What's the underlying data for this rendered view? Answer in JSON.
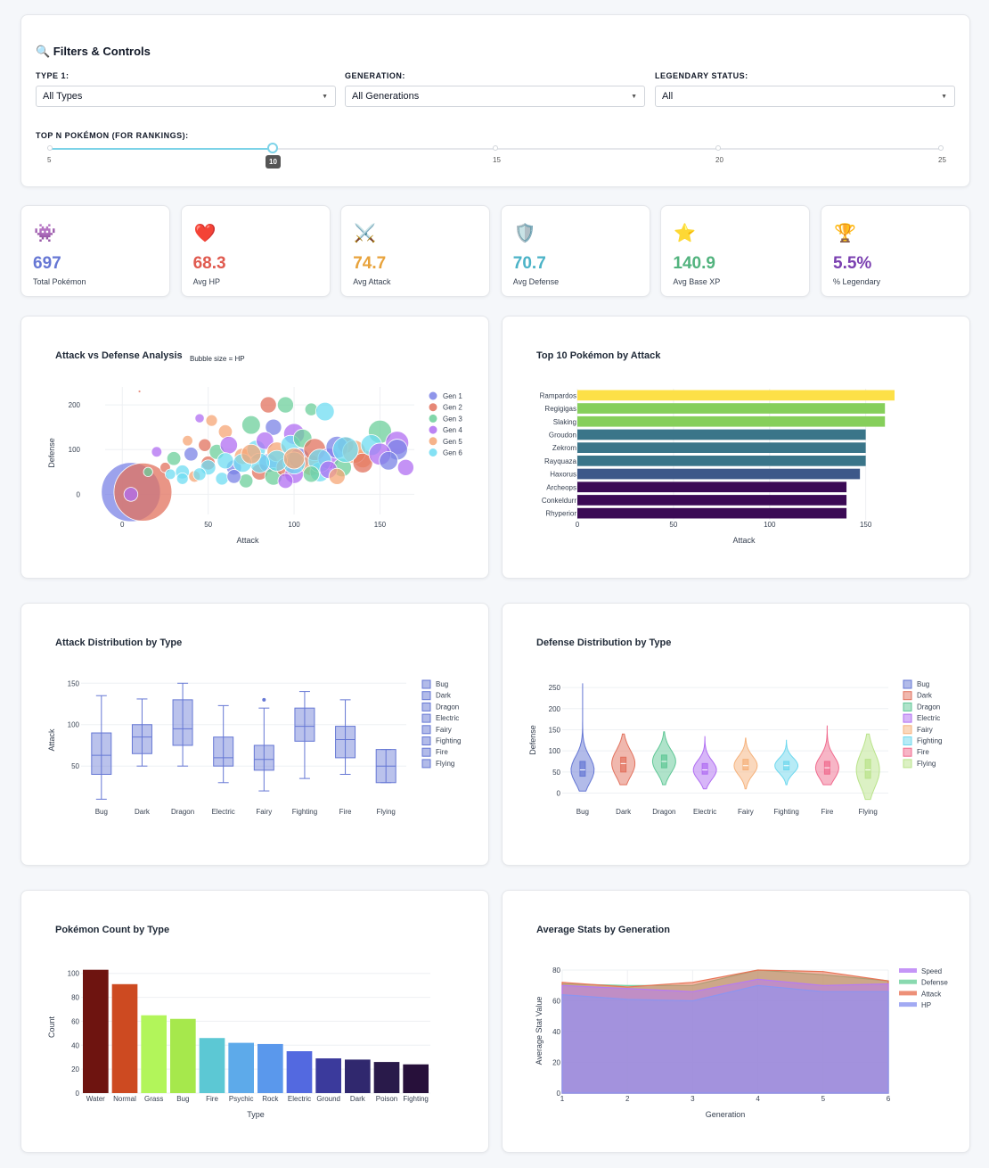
{
  "filters": {
    "title": "🔍 Filters & Controls",
    "type1": {
      "label": "TYPE 1:",
      "value": "All Types"
    },
    "generation": {
      "label": "GENERATION:",
      "value": "All Generations"
    },
    "legendary": {
      "label": "LEGENDARY STATUS:",
      "value": "All"
    },
    "slider": {
      "label": "TOP N POKÉMON (FOR RANKINGS):",
      "min": 5,
      "max": 25,
      "value": 10,
      "ticks": [
        "5",
        "10",
        "15",
        "20",
        "25"
      ],
      "current": "10"
    }
  },
  "kpis": [
    {
      "icon": "👾",
      "value": "697",
      "label": "Total Pokémon",
      "color": "#6677d4"
    },
    {
      "icon": "❤️",
      "value": "68.3",
      "label": "Avg HP",
      "color": "#e05a4f"
    },
    {
      "icon": "⚔️",
      "value": "74.7",
      "label": "Avg Attack",
      "color": "#e8a33c"
    },
    {
      "icon": "🛡️",
      "value": "70.7",
      "label": "Avg Defense",
      "color": "#4bb3c7"
    },
    {
      "icon": "⭐",
      "value": "140.9",
      "label": "Avg Base XP",
      "color": "#52b37e"
    },
    {
      "icon": "🏆",
      "value": "5.5%",
      "label": "% Legendary",
      "color": "#7a3fb0"
    }
  ],
  "chart_data": [
    {
      "id": "scatter",
      "type": "scatter",
      "title": "Attack vs Defense Analysis",
      "subtitle": "Bubble size = HP",
      "xlabel": "Attack",
      "ylabel": "Defense",
      "xlim": [
        -10,
        170
      ],
      "ylim": [
        -45,
        240
      ],
      "xticks": [
        0,
        50,
        100,
        150
      ],
      "yticks": [
        0,
        100,
        200
      ],
      "series": [
        {
          "name": "Gen 1",
          "color": "#7b83e6"
        },
        {
          "name": "Gen 2",
          "color": "#e2725e"
        },
        {
          "name": "Gen 3",
          "color": "#6ccf9b"
        },
        {
          "name": "Gen 4",
          "color": "#b06ef2"
        },
        {
          "name": "Gen 5",
          "color": "#f5a676"
        },
        {
          "name": "Gen 6",
          "color": "#6fdcf2"
        }
      ],
      "points": [
        [
          5,
          5,
          255,
          0
        ],
        [
          10,
          230,
          10,
          1
        ],
        [
          12,
          5,
          250,
          1
        ],
        [
          5,
          0,
          60,
          3
        ],
        [
          85,
          200,
          70,
          1
        ],
        [
          95,
          200,
          70,
          2
        ],
        [
          110,
          190,
          55,
          2
        ],
        [
          118,
          185,
          80,
          5
        ],
        [
          45,
          170,
          40,
          3
        ],
        [
          52,
          165,
          50,
          4
        ],
        [
          75,
          155,
          80,
          2
        ],
        [
          88,
          150,
          70,
          0
        ],
        [
          60,
          140,
          60,
          4
        ],
        [
          100,
          135,
          90,
          3
        ],
        [
          150,
          140,
          100,
          2
        ],
        [
          160,
          115,
          100,
          3
        ],
        [
          160,
          100,
          90,
          0
        ],
        [
          165,
          60,
          70,
          3
        ],
        [
          140,
          80,
          80,
          4
        ],
        [
          130,
          110,
          70,
          1
        ],
        [
          20,
          95,
          45,
          3
        ],
        [
          25,
          60,
          45,
          1
        ],
        [
          30,
          80,
          60,
          2
        ],
        [
          35,
          50,
          60,
          5
        ],
        [
          40,
          90,
          60,
          0
        ],
        [
          42,
          40,
          50,
          4
        ],
        [
          50,
          70,
          60,
          1
        ],
        [
          55,
          95,
          65,
          2
        ],
        [
          58,
          35,
          55,
          5
        ],
        [
          62,
          110,
          75,
          3
        ],
        [
          65,
          60,
          65,
          0
        ],
        [
          70,
          85,
          70,
          4
        ],
        [
          72,
          30,
          60,
          2
        ],
        [
          78,
          100,
          80,
          5
        ],
        [
          80,
          50,
          70,
          1
        ],
        [
          83,
          120,
          75,
          3
        ],
        [
          85,
          70,
          80,
          0
        ],
        [
          88,
          40,
          75,
          2
        ],
        [
          90,
          95,
          85,
          4
        ],
        [
          95,
          60,
          80,
          1
        ],
        [
          98,
          110,
          85,
          5
        ],
        [
          100,
          45,
          80,
          3
        ],
        [
          103,
          80,
          90,
          0
        ],
        [
          105,
          125,
          80,
          2
        ],
        [
          110,
          65,
          90,
          4
        ],
        [
          112,
          100,
          95,
          1
        ],
        [
          115,
          50,
          85,
          5
        ],
        [
          120,
          80,
          90,
          3
        ],
        [
          125,
          105,
          95,
          0
        ],
        [
          128,
          60,
          80,
          2
        ],
        [
          135,
          95,
          100,
          4
        ],
        [
          140,
          70,
          85,
          1
        ],
        [
          145,
          110,
          90,
          5
        ],
        [
          150,
          90,
          95,
          3
        ],
        [
          155,
          75,
          80,
          0
        ],
        [
          130,
          100,
          110,
          5
        ],
        [
          115,
          75,
          100,
          5
        ],
        [
          100,
          70,
          95,
          5
        ],
        [
          90,
          75,
          90,
          5
        ],
        [
          80,
          70,
          85,
          5
        ],
        [
          70,
          70,
          80,
          5
        ],
        [
          60,
          75,
          70,
          5
        ],
        [
          50,
          60,
          65,
          5
        ],
        [
          45,
          45,
          55,
          5
        ],
        [
          35,
          35,
          50,
          5
        ],
        [
          28,
          45,
          45,
          5
        ],
        [
          100,
          80,
          90,
          4
        ],
        [
          75,
          90,
          85,
          4
        ],
        [
          65,
          40,
          60,
          0
        ],
        [
          110,
          45,
          70,
          2
        ],
        [
          120,
          55,
          75,
          3
        ],
        [
          48,
          110,
          55,
          1
        ],
        [
          38,
          120,
          45,
          4
        ],
        [
          95,
          30,
          65,
          3
        ],
        [
          125,
          40,
          70,
          4
        ],
        [
          15,
          50,
          40,
          2
        ]
      ]
    },
    {
      "id": "topattack",
      "type": "bar",
      "orientation": "horizontal",
      "title": "Top 10 Pokémon by Attack",
      "xlabel": "Attack",
      "xlim": [
        0,
        165
      ],
      "xticks": [
        0,
        50,
        100,
        150
      ],
      "categories": [
        "Rampardos",
        "Regigigas",
        "Slaking",
        "Groudon",
        "Zekrom",
        "Rayquaza",
        "Haxorus",
        "Archeops",
        "Conkeldurr",
        "Rhyperior"
      ],
      "values": [
        165,
        160,
        160,
        150,
        150,
        150,
        147,
        140,
        140,
        140
      ],
      "colors": [
        "#fde047",
        "#86cf5b",
        "#86cf5b",
        "#3a7589",
        "#3a7589",
        "#3a7589",
        "#3d5889",
        "#3b0a55",
        "#3b0a55",
        "#3b0a55"
      ]
    },
    {
      "id": "boxplot",
      "type": "box",
      "title": "Attack Distribution by Type",
      "ylabel": "Attack",
      "ylim": [
        5,
        160
      ],
      "yticks": [
        50,
        100,
        150
      ],
      "categories": [
        "Bug",
        "Dark",
        "Dragon",
        "Electric",
        "Fairy",
        "Fighting",
        "Fire",
        "Flying"
      ],
      "stats": [
        [
          10,
          40,
          63,
          90,
          135
        ],
        [
          50,
          65,
          85,
          100,
          131
        ],
        [
          50,
          75,
          95,
          130,
          150
        ],
        [
          30,
          50,
          60,
          85,
          123
        ],
        [
          20,
          45,
          58,
          75,
          120
        ],
        [
          35,
          80,
          98,
          120,
          140
        ],
        [
          40,
          60,
          82,
          98,
          130
        ],
        [
          30,
          30,
          50,
          70,
          70
        ]
      ],
      "outliers": [
        [
          4,
          130
        ]
      ],
      "color": "#6577d4"
    },
    {
      "id": "violin",
      "type": "violin",
      "title": "Defense Distribution by Type",
      "ylabel": "Defense",
      "ylim": [
        -20,
        265
      ],
      "yticks": [
        0,
        50,
        100,
        150,
        200,
        250
      ],
      "categories": [
        "Bug",
        "Dark",
        "Dragon",
        "Electric",
        "Fairy",
        "Fighting",
        "Fire",
        "Flying"
      ],
      "colors": [
        "#6577d4",
        "#e2725e",
        "#5fc796",
        "#b06ef2",
        "#f5b27c",
        "#6fd8ee",
        "#f06b8e",
        "#b9e38a"
      ],
      "ranges": [
        [
          5,
          260
        ],
        [
          20,
          140
        ],
        [
          20,
          145
        ],
        [
          10,
          135
        ],
        [
          10,
          130
        ],
        [
          20,
          125
        ],
        [
          20,
          160
        ],
        [
          -15,
          140
        ]
      ],
      "medians": [
        55,
        70,
        75,
        55,
        65,
        65,
        60,
        55
      ],
      "quartiles": [
        [
          40,
          75
        ],
        [
          50,
          85
        ],
        [
          60,
          90
        ],
        [
          45,
          70
        ],
        [
          55,
          80
        ],
        [
          55,
          75
        ],
        [
          45,
          75
        ],
        [
          35,
          80
        ]
      ]
    },
    {
      "id": "count",
      "type": "bar",
      "title": "Pokémon Count by Type",
      "xlabel": "Type",
      "ylabel": "Count",
      "ylim": [
        0,
        105
      ],
      "yticks": [
        0,
        20,
        40,
        60,
        80,
        100
      ],
      "categories": [
        "Water",
        "Normal",
        "Grass",
        "Bug",
        "Fire",
        "Psychic",
        "Rock",
        "Electric",
        "Ground",
        "Dark",
        "Poison",
        "Fighting"
      ],
      "values": [
        103,
        91,
        65,
        62,
        46,
        42,
        41,
        35,
        29,
        28,
        26,
        24
      ],
      "colors": [
        "#6e1410",
        "#cd4a21",
        "#b2f55a",
        "#a6e84c",
        "#5cc8d4",
        "#5daaea",
        "#5a98ec",
        "#5369e0",
        "#3b3a9c",
        "#30286e",
        "#291a4a",
        "#27103a"
      ]
    },
    {
      "id": "area",
      "type": "area",
      "title": "Average Stats by Generation",
      "xlabel": "Generation",
      "ylabel": "Average Stat Value",
      "ylim": [
        0,
        80
      ],
      "xlim": [
        1,
        6
      ],
      "yticks": [
        0,
        20,
        40,
        60,
        80
      ],
      "x": [
        1,
        2,
        3,
        4,
        5,
        6
      ],
      "series": [
        {
          "name": "Speed",
          "values": [
            70,
            68,
            66,
            74,
            70,
            71
          ],
          "color": "#b67af5"
        },
        {
          "name": "Defense",
          "values": [
            71,
            70,
            70,
            80,
            77,
            73
          ],
          "color": "#6ccf9b"
        },
        {
          "name": "Attack",
          "values": [
            72,
            69,
            72,
            80,
            79,
            73
          ],
          "color": "#e87456"
        },
        {
          "name": "HP",
          "values": [
            64,
            61,
            60,
            70,
            66,
            66
          ],
          "color": "#8b95f0"
        }
      ]
    }
  ]
}
